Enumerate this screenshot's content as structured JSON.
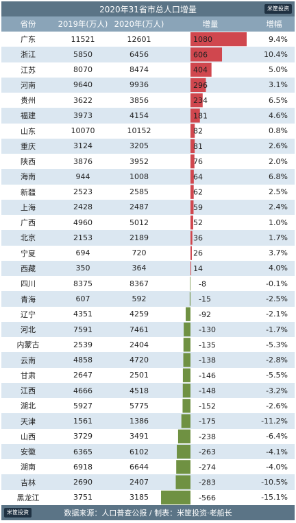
{
  "logo_text": "米筐投资",
  "chart_data": {
    "type": "table",
    "title": "2020年31省市总人口增量",
    "columns": [
      "省份",
      "2019年(万人)",
      "2020年(万人)",
      "增量",
      "增幅"
    ],
    "rows": [
      {
        "province": "广东",
        "v2019": "11521",
        "v2020": "12601",
        "increase": 1080,
        "rate": "9.4%"
      },
      {
        "province": "浙江",
        "v2019": "5850",
        "v2020": "6456",
        "increase": 606,
        "rate": "10.4%"
      },
      {
        "province": "江苏",
        "v2019": "8070",
        "v2020": "8474",
        "increase": 404,
        "rate": "5.0%"
      },
      {
        "province": "河南",
        "v2019": "9640",
        "v2020": "9936",
        "increase": 296,
        "rate": "3.1%"
      },
      {
        "province": "贵州",
        "v2019": "3622",
        "v2020": "3856",
        "increase": 234,
        "rate": "6.5%"
      },
      {
        "province": "福建",
        "v2019": "3973",
        "v2020": "4154",
        "increase": 181,
        "rate": "4.6%"
      },
      {
        "province": "山东",
        "v2019": "10070",
        "v2020": "10152",
        "increase": 82,
        "rate": "0.8%"
      },
      {
        "province": "重庆",
        "v2019": "3124",
        "v2020": "3205",
        "increase": 81,
        "rate": "2.6%"
      },
      {
        "province": "陕西",
        "v2019": "3876",
        "v2020": "3952",
        "increase": 76,
        "rate": "2.0%"
      },
      {
        "province": "海南",
        "v2019": "944",
        "v2020": "1008",
        "increase": 64,
        "rate": "6.8%"
      },
      {
        "province": "新疆",
        "v2019": "2523",
        "v2020": "2585",
        "increase": 62,
        "rate": "2.5%"
      },
      {
        "province": "上海",
        "v2019": "2428",
        "v2020": "2487",
        "increase": 59,
        "rate": "2.4%"
      },
      {
        "province": "广西",
        "v2019": "4960",
        "v2020": "5012",
        "increase": 52,
        "rate": "1.0%"
      },
      {
        "province": "北京",
        "v2019": "2153",
        "v2020": "2189",
        "increase": 36,
        "rate": "1.7%"
      },
      {
        "province": "宁夏",
        "v2019": "694",
        "v2020": "720",
        "increase": 26,
        "rate": "3.7%"
      },
      {
        "province": "西藏",
        "v2019": "350",
        "v2020": "364",
        "increase": 14,
        "rate": "4.0%"
      },
      {
        "province": "四川",
        "v2019": "8375",
        "v2020": "8367",
        "increase": -8,
        "rate": "-0.1%"
      },
      {
        "province": "青海",
        "v2019": "607",
        "v2020": "592",
        "increase": -15,
        "rate": "-2.5%"
      },
      {
        "province": "辽宁",
        "v2019": "4351",
        "v2020": "4259",
        "increase": -92,
        "rate": "-2.1%"
      },
      {
        "province": "河北",
        "v2019": "7591",
        "v2020": "7461",
        "increase": -130,
        "rate": "-1.7%"
      },
      {
        "province": "内蒙古",
        "v2019": "2539",
        "v2020": "2404",
        "increase": -135,
        "rate": "-5.3%"
      },
      {
        "province": "云南",
        "v2019": "4858",
        "v2020": "4720",
        "increase": -138,
        "rate": "-2.8%"
      },
      {
        "province": "甘肃",
        "v2019": "2647",
        "v2020": "2501",
        "increase": -146,
        "rate": "-5.5%"
      },
      {
        "province": "江西",
        "v2019": "4666",
        "v2020": "4518",
        "increase": -148,
        "rate": "-3.2%"
      },
      {
        "province": "湖北",
        "v2019": "5927",
        "v2020": "5775",
        "increase": -152,
        "rate": "-2.6%"
      },
      {
        "province": "天津",
        "v2019": "1561",
        "v2020": "1386",
        "increase": -175,
        "rate": "-11.2%"
      },
      {
        "province": "山西",
        "v2019": "3729",
        "v2020": "3491",
        "increase": -238,
        "rate": "-6.4%"
      },
      {
        "province": "安徽",
        "v2019": "6365",
        "v2020": "6102",
        "increase": -263,
        "rate": "-4.1%"
      },
      {
        "province": "湖南",
        "v2019": "6918",
        "v2020": "6644",
        "increase": -274,
        "rate": "-4.0%"
      },
      {
        "province": "吉林",
        "v2019": "2690",
        "v2020": "2407",
        "increase": -283,
        "rate": "-10.5%"
      },
      {
        "province": "黑龙江",
        "v2019": "3751",
        "v2020": "3185",
        "increase": -566,
        "rate": "-15.1%"
      }
    ],
    "positive_color": "#d0474e",
    "negative_color": "#6f9142",
    "source": "数据来源：人口普查公报 / 制表：米筐投资·老船长"
  }
}
